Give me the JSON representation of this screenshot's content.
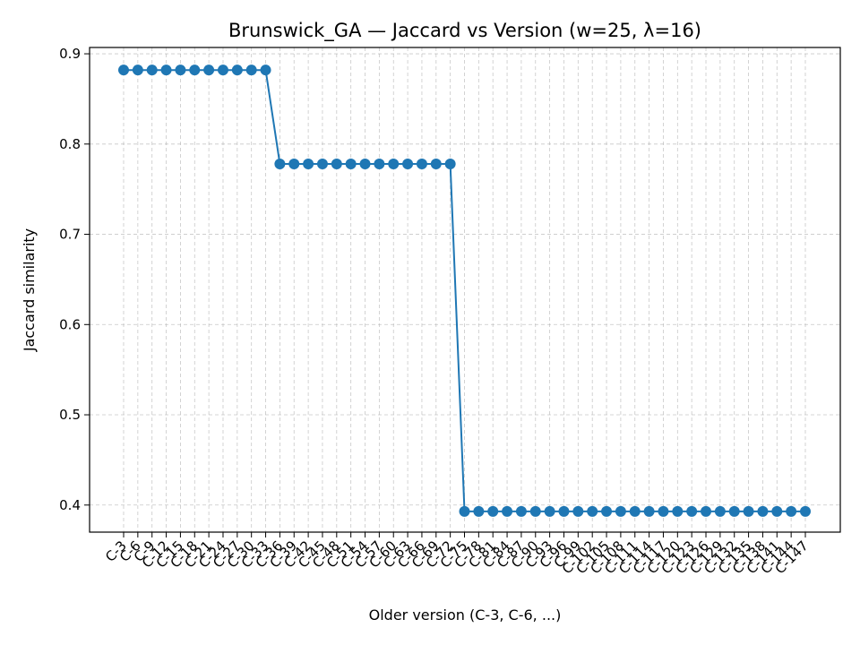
{
  "chart_data": {
    "type": "line",
    "title": "Brunswick_GA — Jaccard vs Version (w=25, λ=16)",
    "xlabel": "Older version (C-3, C-6, ...)",
    "ylabel": "Jaccard similarity",
    "ylim": [
      0.37,
      0.907
    ],
    "yticks": [
      0.4,
      0.5,
      0.6,
      0.7,
      0.8,
      0.9
    ],
    "grid": true,
    "categories": [
      "C-3",
      "C-6",
      "C-9",
      "C-12",
      "C-15",
      "C-18",
      "C-21",
      "C-24",
      "C-27",
      "C-30",
      "C-33",
      "C-36",
      "C-39",
      "C-42",
      "C-45",
      "C-48",
      "C-51",
      "C-54",
      "C-57",
      "C-60",
      "C-63",
      "C-66",
      "C-69",
      "C-72",
      "C-75",
      "C-78",
      "C-81",
      "C-84",
      "C-87",
      "C-90",
      "C-93",
      "C-96",
      "C-99",
      "C-102",
      "C-105",
      "C-108",
      "C-111",
      "C-114",
      "C-117",
      "C-120",
      "C-123",
      "C-126",
      "C-129",
      "C-132",
      "C-135",
      "C-138",
      "C-141",
      "C-144",
      "C-147"
    ],
    "series": [
      {
        "values": [
          0.882,
          0.882,
          0.882,
          0.882,
          0.882,
          0.882,
          0.882,
          0.882,
          0.882,
          0.882,
          0.882,
          0.778,
          0.778,
          0.778,
          0.778,
          0.778,
          0.778,
          0.778,
          0.778,
          0.778,
          0.778,
          0.778,
          0.778,
          0.778,
          0.393,
          0.393,
          0.393,
          0.393,
          0.393,
          0.393,
          0.393,
          0.393,
          0.393,
          0.393,
          0.393,
          0.393,
          0.393,
          0.393,
          0.393,
          0.393,
          0.393,
          0.393,
          0.393,
          0.393,
          0.393,
          0.393,
          0.393,
          0.393,
          0.393
        ],
        "color": "#1f77b4"
      }
    ]
  }
}
